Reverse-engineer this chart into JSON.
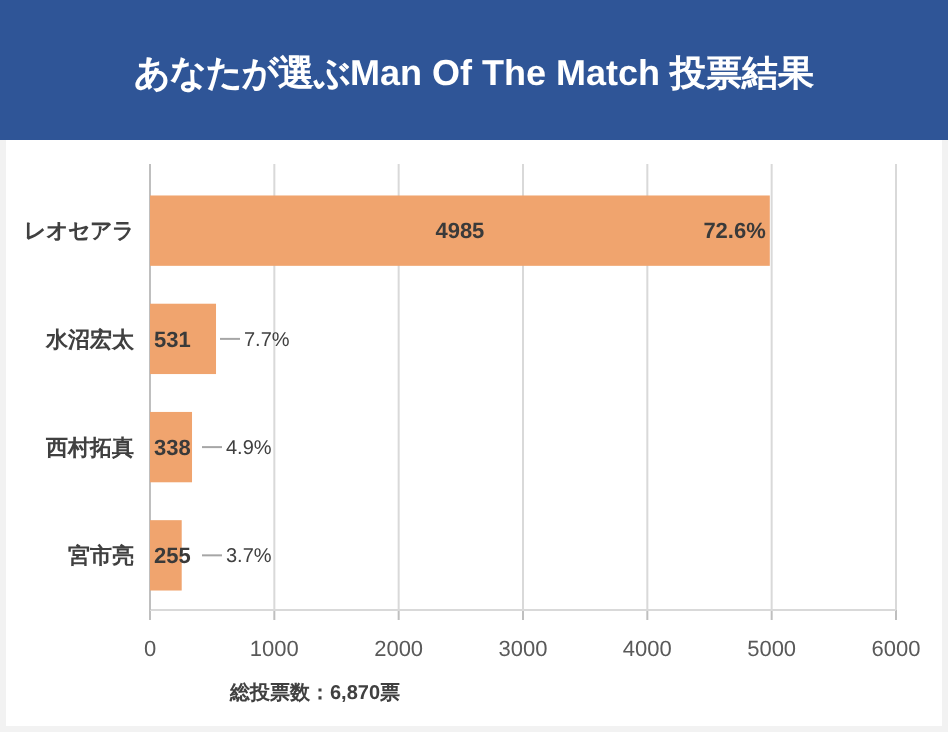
{
  "chart_data": {
    "type": "bar",
    "orientation": "horizontal",
    "title": "あなたが選ぶMan Of The Match 投票結果",
    "categories": [
      "レオセアラ",
      "水沼宏太",
      "西村拓真",
      "宮市亮"
    ],
    "values": [
      4985,
      531,
      338,
      255
    ],
    "color": "#f0a46e",
    "xlim": [
      0,
      6000
    ],
    "xticks": [
      0,
      1000,
      2000,
      3000,
      4000,
      5000,
      6000
    ],
    "grid": "x",
    "data_labels": true,
    "annotations": [
      {
        "text": "72.6%",
        "x": 4985,
        "y": "レオセアラ"
      },
      {
        "text": "7.7%",
        "x": 531,
        "y": "水沼宏太"
      },
      {
        "text": "4.9%",
        "x": 338,
        "y": "西村拓真"
      },
      {
        "text": "3.7%",
        "x": 255,
        "y": "宮市亮"
      },
      "総投票数：6,870票"
    ]
  }
}
